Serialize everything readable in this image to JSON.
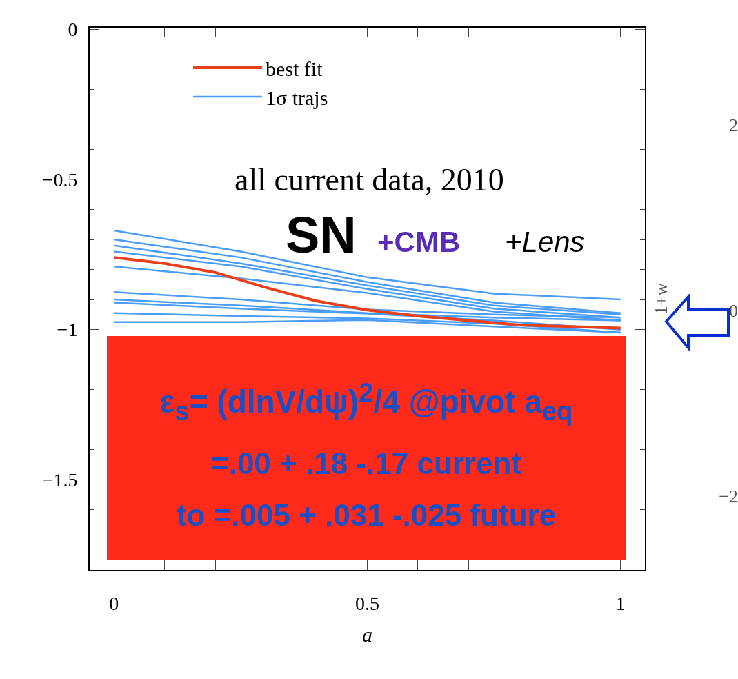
{
  "chart_data": {
    "type": "line",
    "xlabel": "a",
    "y2label": "1+w",
    "x": [
      0,
      0.25,
      0.5,
      0.75,
      1
    ],
    "xlim": [
      -0.048,
      1.048
    ],
    "xticks": [
      0,
      0.5,
      1
    ],
    "ylim": [
      -1.8,
      0.005
    ],
    "yticks": [
      0,
      {
        "value": -0.5,
        "label": "−0.5"
      },
      {
        "value": -1,
        "label": "−1"
      },
      {
        "value": -1.5,
        "label": "−1.5"
      }
    ],
    "y2lim": [
      -2.8,
      3.05
    ],
    "y2ticks": [
      2,
      0,
      {
        "value": -2,
        "label": "−2"
      }
    ],
    "grid": false,
    "legend": "top left",
    "line_style": "solid",
    "marker": "none",
    "annotations": [
      "all current data, 2010",
      "SN",
      "+CMB",
      "+Lens",
      "ε$_{s}$= (dlnV/dψ)$^{2}$/4 @pivot a$_{eq}$",
      "=.00 + .18 -.17 current",
      "to =.005 + .031 -.025 future"
    ],
    "series": [
      {
        "name": "best fit",
        "color": "#e8401c",
        "x": [
          0,
          0.1,
          0.2,
          0.3,
          0.4,
          0.5,
          0.6,
          0.7,
          0.8,
          0.9,
          1
        ],
        "values": [
          -0.76,
          -0.78,
          -0.81,
          -0.86,
          -0.905,
          -0.935,
          -0.955,
          -0.97,
          -0.985,
          -0.99,
          -0.995
        ]
      },
      {
        "name": "1σ trajs",
        "color": "#4a9cf5",
        "values": [
          -0.67,
          -0.74,
          -0.826,
          -0.88,
          -0.9
        ]
      },
      {
        "color": "#4a9cf5",
        "values": [
          -0.7,
          -0.76,
          -0.842,
          -0.91,
          -0.945
        ]
      },
      {
        "color": "#4a9cf5",
        "values": [
          -0.72,
          -0.78,
          -0.853,
          -0.92,
          -0.95
        ]
      },
      {
        "color": "#4a9cf5",
        "values": [
          -0.74,
          -0.79,
          -0.865,
          -0.93,
          -0.96
        ]
      },
      {
        "color": "#4a9cf5",
        "values": [
          -0.79,
          -0.83,
          -0.878,
          -0.94,
          -0.97
        ]
      },
      {
        "color": "#4a9cf5",
        "values": [
          -0.875,
          -0.9,
          -0.933,
          -0.95,
          -0.96
        ]
      },
      {
        "color": "#4a9cf5",
        "values": [
          -0.9,
          -0.92,
          -0.945,
          -0.96,
          -0.97
        ]
      },
      {
        "color": "#4a9cf5",
        "values": [
          -0.91,
          -0.93,
          -0.947,
          -0.97,
          -1
        ]
      },
      {
        "color": "#4a9cf5",
        "values": [
          -0.945,
          -0.955,
          -0.963,
          -0.98,
          -1.01
        ]
      },
      {
        "color": "#4a9cf5",
        "values": [
          -0.975,
          -0.975,
          -0.968,
          -0.99,
          -1.01
        ]
      }
    ]
  }
}
